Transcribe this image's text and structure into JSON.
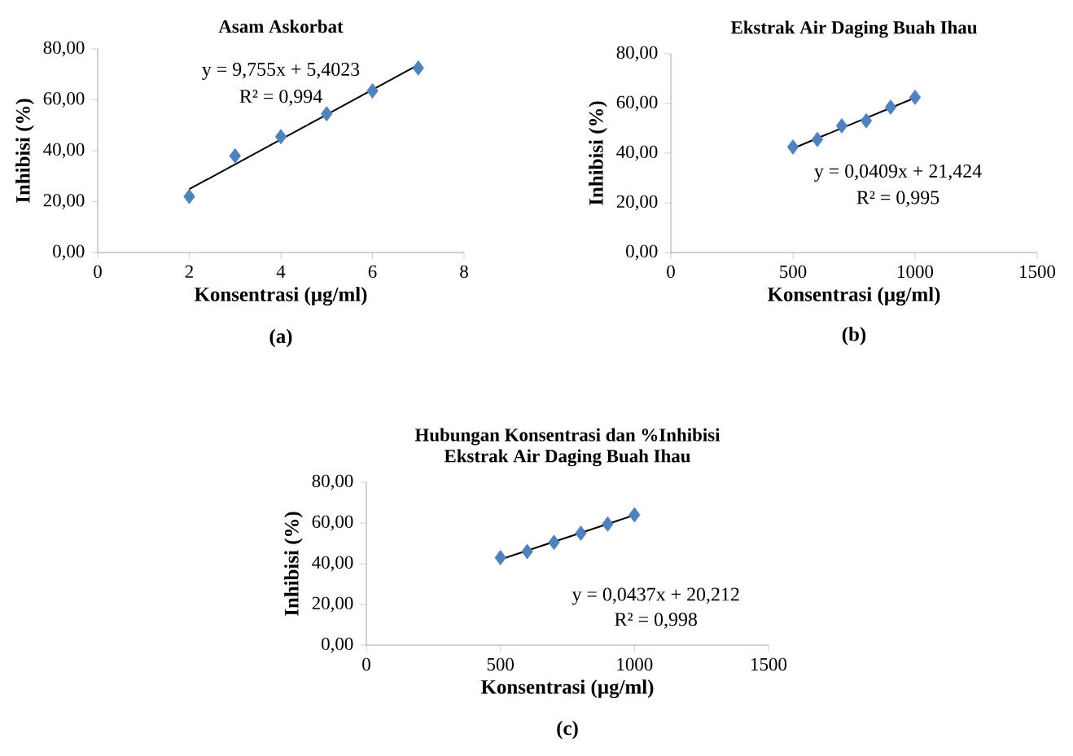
{
  "chart_data": [
    {
      "type": "scatter",
      "title": "Asam Askorbat",
      "xlabel": "Konsentrasi (µg/ml)",
      "ylabel": "Inhibisi (%)",
      "xlim": [
        0,
        8
      ],
      "xticks": [
        0,
        2,
        4,
        6,
        8
      ],
      "ylim": [
        0,
        80
      ],
      "yticks": [
        {
          "value": 0,
          "label": "0,00"
        },
        {
          "value": 20,
          "label": "20,00"
        },
        {
          "value": 40,
          "label": "40,00"
        },
        {
          "value": 60,
          "label": "60,00"
        },
        {
          "value": 80,
          "label": "80,00"
        }
      ],
      "series": [
        {
          "type": "scatter",
          "marker": "diamond",
          "color": "#4f81bd",
          "x": [
            2,
            3,
            4,
            5,
            6,
            7
          ],
          "values": [
            22,
            38,
            45.5,
            54.5,
            63.5,
            72.5
          ]
        },
        {
          "type": "line",
          "marker": "none",
          "color": "#000000",
          "x": [
            2,
            7
          ],
          "values": [
            24.9,
            73.7
          ]
        }
      ],
      "annotations": [
        "y = 9,755x + 5,4023",
        "R² = 0,994",
        "(a)"
      ]
    },
    {
      "type": "scatter",
      "title": "Ekstrak Air Daging Buah Ihau",
      "xlabel": "Konsentrasi (µg/ml)",
      "ylabel": "Inhibisi (%)",
      "xlim": [
        0,
        1500
      ],
      "xticks": [
        0,
        500,
        1000,
        1500
      ],
      "ylim": [
        0,
        80
      ],
      "yticks": [
        {
          "value": 0,
          "label": "0,00"
        },
        {
          "value": 20,
          "label": "20,00"
        },
        {
          "value": 40,
          "label": "40,00"
        },
        {
          "value": 60,
          "label": "60,00"
        },
        {
          "value": 80,
          "label": "80,00"
        }
      ],
      "series": [
        {
          "type": "scatter",
          "marker": "diamond",
          "color": "#4f81bd",
          "x": [
            500,
            600,
            700,
            800,
            900,
            1000
          ],
          "values": [
            42.5,
            45.5,
            51,
            53,
            58.5,
            62.5
          ]
        },
        {
          "type": "line",
          "marker": "none",
          "color": "#000000",
          "x": [
            500,
            1000
          ],
          "values": [
            41.9,
            62.3
          ]
        }
      ],
      "annotations": [
        "y = 0,0409x + 21,424",
        "R² = 0,995",
        "(b)"
      ]
    },
    {
      "type": "scatter",
      "title": "Hubungan Konsentrasi dan %Inhibisi",
      "subtitle": "Ekstrak Air Daging Buah Ihau",
      "xlabel": "Konsentrasi (µg/ml)",
      "ylabel": "Inhibisi (%)",
      "xlim": [
        0,
        1500
      ],
      "xticks": [
        0,
        500,
        1000,
        1500
      ],
      "ylim": [
        0,
        80
      ],
      "yticks": [
        {
          "value": 0,
          "label": "0,00"
        },
        {
          "value": 20,
          "label": "20,00"
        },
        {
          "value": 40,
          "label": "40,00"
        },
        {
          "value": 60,
          "label": "60,00"
        },
        {
          "value": 80,
          "label": "80,00"
        }
      ],
      "series": [
        {
          "type": "scatter",
          "marker": "diamond",
          "color": "#4f81bd",
          "x": [
            500,
            600,
            700,
            800,
            900,
            1000
          ],
          "values": [
            43,
            46,
            50.5,
            55,
            59.5,
            64
          ]
        },
        {
          "type": "line",
          "marker": "none",
          "color": "#000000",
          "x": [
            500,
            1000
          ],
          "values": [
            42.1,
            63.9
          ]
        }
      ],
      "annotations": [
        "y = 0,0437x + 20,212",
        "R² = 0,998",
        "(c)"
      ]
    }
  ]
}
